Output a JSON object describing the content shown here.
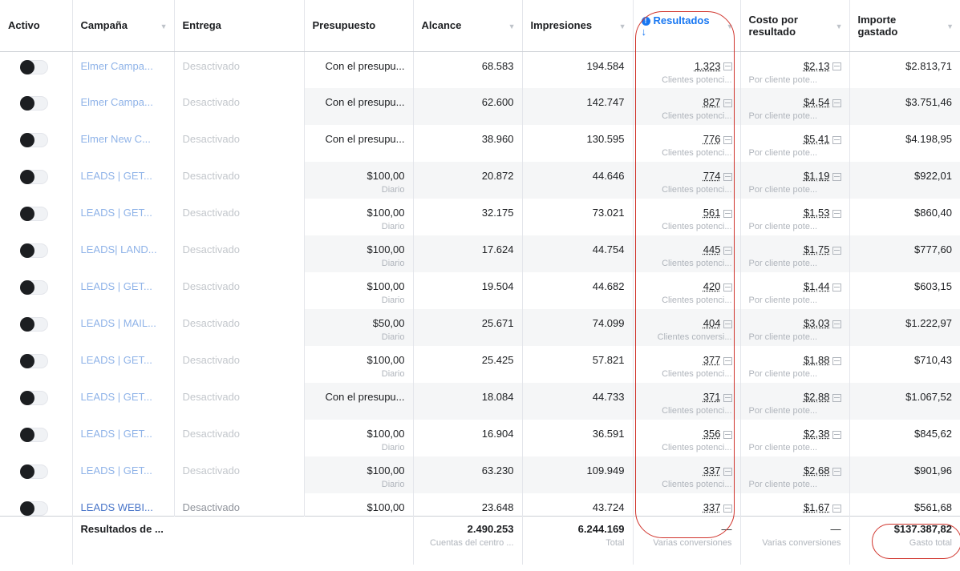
{
  "columns": {
    "activo": "Activo",
    "campana": "Campaña",
    "entrega": "Entrega",
    "presupuesto": "Presupuesto",
    "alcance": "Alcance",
    "impresiones": "Impresiones",
    "resultados": "Resultados",
    "resultados_sort": "↓",
    "costo_line1": "Costo por",
    "costo_line2": "resultado",
    "importe_line1": "Importe",
    "importe_line2": "gastado"
  },
  "rows": [
    {
      "campana": "Elmer Campa...",
      "entrega": "Desactivado",
      "presupuesto": "Con el presupu...",
      "presupuesto_sub": "",
      "alcance": "68.583",
      "impresiones": "194.584",
      "resultados": "1.323",
      "resultados_sub": "Clientes potenci...",
      "costo": "$2,13",
      "costo_sub": "Por cliente pote...",
      "importe": "$2.813,71"
    },
    {
      "campana": "Elmer Campa...",
      "entrega": "Desactivado",
      "presupuesto": "Con el presupu...",
      "presupuesto_sub": "",
      "alcance": "62.600",
      "impresiones": "142.747",
      "resultados": "827",
      "resultados_sub": "Clientes potenci...",
      "costo": "$4,54",
      "costo_sub": "Por cliente pote...",
      "importe": "$3.751,46"
    },
    {
      "campana": "Elmer New C...",
      "entrega": "Desactivado",
      "presupuesto": "Con el presupu...",
      "presupuesto_sub": "",
      "alcance": "38.960",
      "impresiones": "130.595",
      "resultados": "776",
      "resultados_sub": "Clientes potenci...",
      "costo": "$5,41",
      "costo_sub": "Por cliente pote...",
      "importe": "$4.198,95"
    },
    {
      "campana": "LEADS | GET...",
      "entrega": "Desactivado",
      "presupuesto": "$100,00",
      "presupuesto_sub": "Diario",
      "alcance": "20.872",
      "impresiones": "44.646",
      "resultados": "774",
      "resultados_sub": "Clientes potenci...",
      "costo": "$1,19",
      "costo_sub": "Por cliente pote...",
      "importe": "$922,01"
    },
    {
      "campana": "LEADS | GET...",
      "entrega": "Desactivado",
      "presupuesto": "$100,00",
      "presupuesto_sub": "Diario",
      "alcance": "32.175",
      "impresiones": "73.021",
      "resultados": "561",
      "resultados_sub": "Clientes potenci...",
      "costo": "$1,53",
      "costo_sub": "Por cliente pote...",
      "importe": "$860,40"
    },
    {
      "campana": "LEADS| LAND...",
      "entrega": "Desactivado",
      "presupuesto": "$100,00",
      "presupuesto_sub": "Diario",
      "alcance": "17.624",
      "impresiones": "44.754",
      "resultados": "445",
      "resultados_sub": "Clientes potenci...",
      "costo": "$1,75",
      "costo_sub": "Por cliente pote...",
      "importe": "$777,60"
    },
    {
      "campana": "LEADS | GET...",
      "entrega": "Desactivado",
      "presupuesto": "$100,00",
      "presupuesto_sub": "Diario",
      "alcance": "19.504",
      "impresiones": "44.682",
      "resultados": "420",
      "resultados_sub": "Clientes potenci...",
      "costo": "$1,44",
      "costo_sub": "Por cliente pote...",
      "importe": "$603,15"
    },
    {
      "campana": "LEADS | MAIL...",
      "entrega": "Desactivado",
      "presupuesto": "$50,00",
      "presupuesto_sub": "Diario",
      "alcance": "25.671",
      "impresiones": "74.099",
      "resultados": "404",
      "resultados_sub": "Clientes conversi...",
      "costo": "$3,03",
      "costo_sub": "Por cliente pote...",
      "importe": "$1.222,97"
    },
    {
      "campana": "LEADS | GET...",
      "entrega": "Desactivado",
      "presupuesto": "$100,00",
      "presupuesto_sub": "Diario",
      "alcance": "25.425",
      "impresiones": "57.821",
      "resultados": "377",
      "resultados_sub": "Clientes potenci...",
      "costo": "$1,88",
      "costo_sub": "Por cliente pote...",
      "importe": "$710,43"
    },
    {
      "campana": "LEADS | GET...",
      "entrega": "Desactivado",
      "presupuesto": "Con el presupu...",
      "presupuesto_sub": "",
      "alcance": "18.084",
      "impresiones": "44.733",
      "resultados": "371",
      "resultados_sub": "Clientes potenci...",
      "costo": "$2,88",
      "costo_sub": "Por cliente pote...",
      "importe": "$1.067,52"
    },
    {
      "campana": "LEADS | GET...",
      "entrega": "Desactivado",
      "presupuesto": "$100,00",
      "presupuesto_sub": "Diario",
      "alcance": "16.904",
      "impresiones": "36.591",
      "resultados": "356",
      "resultados_sub": "Clientes potenci...",
      "costo": "$2,38",
      "costo_sub": "Por cliente pote...",
      "importe": "$845,62"
    },
    {
      "campana": "LEADS | GET...",
      "entrega": "Desactivado",
      "presupuesto": "$100,00",
      "presupuesto_sub": "Diario",
      "alcance": "63.230",
      "impresiones": "109.949",
      "resultados": "337",
      "resultados_sub": "Clientes potenci...",
      "costo": "$2,68",
      "costo_sub": "Por cliente pote...",
      "importe": "$901,96"
    },
    {
      "campana": "LEADS WEBI...",
      "entrega": "Desactivado",
      "presupuesto": "$100,00",
      "presupuesto_sub": "",
      "alcance": "23.648",
      "impresiones": "43.724",
      "resultados": "337",
      "resultados_sub": "",
      "costo": "$1,67",
      "costo_sub": "",
      "importe": "$561,68"
    }
  ],
  "totals": {
    "label": "Resultados de ...",
    "alcance": "2.490.253",
    "alcance_sub": "Cuentas del centro ...",
    "impresiones": "6.244.169",
    "impresiones_sub": "Total",
    "resultados": "—",
    "resultados_sub": "Varias conversiones",
    "costo": "—",
    "costo_sub": "Varias conversiones",
    "importe": "$137.387,82",
    "importe_sub": "Gasto total"
  },
  "colors": {
    "link": "#8fb3e8",
    "accent": "#1877f2",
    "annotation": "#d0342c"
  }
}
